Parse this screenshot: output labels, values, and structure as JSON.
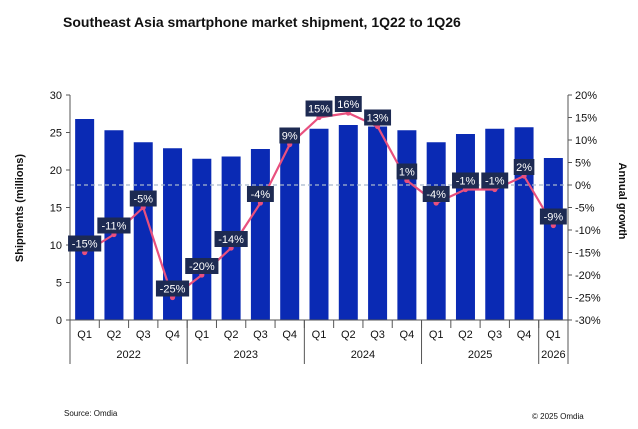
{
  "title": "Southeast Asia smartphone market shipment, 1Q22 to 1Q26",
  "footer": {
    "source": "Source: Omdia",
    "copyright": "© 2025 Omdia"
  },
  "colors": {
    "bars": "#0a2ab4",
    "line": "#e8507e",
    "label_bg": "#1d2a52",
    "reference_line": "#a8b6cc"
  },
  "chart_data": {
    "type": "bar",
    "title": "Southeast Asia smartphone market shipment, 1Q22 to 1Q26",
    "categories": [
      "Q1",
      "Q2",
      "Q3",
      "Q4",
      "Q1",
      "Q2",
      "Q3",
      "Q4",
      "Q1",
      "Q2",
      "Q3",
      "Q4",
      "Q1",
      "Q2",
      "Q3",
      "Q4",
      "Q1"
    ],
    "groups": [
      {
        "label": "2022",
        "count": 4
      },
      {
        "label": "2023",
        "count": 4
      },
      {
        "label": "2024",
        "count": 4
      },
      {
        "label": "2025",
        "count": 4
      },
      {
        "label": "2026",
        "count": 1
      }
    ],
    "ylabel": "Shipments (millions)",
    "y2label": "Annual growth",
    "ylim": [
      0,
      30
    ],
    "yticks": [
      "0",
      "5",
      "10",
      "15",
      "20",
      "25",
      "30"
    ],
    "y2lim": [
      -30,
      20
    ],
    "y2ticks": [
      "-30%",
      "-25%",
      "-20%",
      "-15%",
      "-10%",
      "-5%",
      "0%",
      "5%",
      "10%",
      "15%",
      "20%"
    ],
    "series": [
      {
        "type": "bar",
        "axis": "left",
        "values": [
          26.8,
          25.3,
          23.7,
          22.9,
          21.5,
          21.8,
          22.8,
          25.1,
          25.5,
          26.0,
          25.8,
          25.3,
          23.7,
          24.8,
          25.5,
          25.7,
          21.6
        ]
      },
      {
        "type": "line",
        "axis": "right",
        "values": [
          -15,
          -11,
          -5,
          -25,
          -20,
          -14,
          -4,
          9,
          15,
          16,
          13,
          1,
          -4,
          -1,
          -1,
          2,
          -9
        ],
        "labels": [
          "-15%",
          "-11%",
          "-5%",
          "-25%",
          "-20%",
          "-14%",
          "-4%",
          "9%",
          "15%",
          "16%",
          "13%",
          "1%",
          "-4%",
          "-1%",
          "-1%",
          "2%",
          "-9%"
        ]
      }
    ],
    "reference_line": {
      "axis": "left",
      "value": 18,
      "style": "dashed"
    },
    "grid": false,
    "legend": "none"
  }
}
